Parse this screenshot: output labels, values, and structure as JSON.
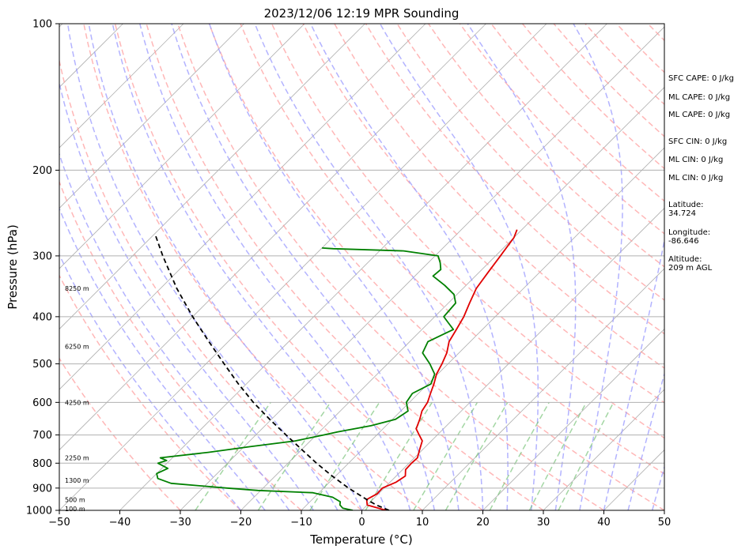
{
  "chart_data": {
    "type": "line",
    "subtype": "skew-t log-p sounding",
    "title": "2023/12/06 12:19 MPR Sounding",
    "xlabel": "Temperature (°C)",
    "ylabel": "Pressure (hPa)",
    "xlim": [
      -50,
      50
    ],
    "ylim": [
      1000,
      100
    ],
    "y_scale": "log",
    "x_ticks": [
      "−50",
      "−40",
      "−30",
      "−20",
      "−10",
      "0",
      "10",
      "20",
      "30",
      "40",
      "50"
    ],
    "y_ticks": [
      "100",
      "200",
      "300",
      "400",
      "500",
      "600",
      "700",
      "800",
      "900",
      "1000"
    ],
    "grid": "horizontal at y ticks",
    "series": [
      {
        "name": "temperature",
        "color": "#e00000",
        "points": [
          [
            1000,
            4.0
          ],
          [
            975,
            0.0
          ],
          [
            950,
            -1.0
          ],
          [
            925,
            -0.2
          ],
          [
            900,
            -0.3
          ],
          [
            875,
            1.0
          ],
          [
            850,
            1.5
          ],
          [
            825,
            0.5
          ],
          [
            800,
            0.4
          ],
          [
            780,
            0.5
          ],
          [
            750,
            -0.5
          ],
          [
            720,
            -1.5
          ],
          [
            700,
            -3.0
          ],
          [
            680,
            -4.5
          ],
          [
            650,
            -5.5
          ],
          [
            625,
            -6.5
          ],
          [
            600,
            -7.0
          ],
          [
            575,
            -8.0
          ],
          [
            550,
            -9.0
          ],
          [
            525,
            -10.2
          ],
          [
            500,
            -11.0
          ],
          [
            475,
            -12.0
          ],
          [
            450,
            -13.5
          ],
          [
            425,
            -14.3
          ],
          [
            400,
            -15.2
          ],
          [
            375,
            -16.5
          ],
          [
            350,
            -17.8
          ],
          [
            325,
            -18.5
          ],
          [
            300,
            -19.2
          ],
          [
            275,
            -20.0
          ],
          [
            265,
            -20.8
          ]
        ]
      },
      {
        "name": "dewpoint",
        "color": "#008000",
        "points": [
          [
            1000,
            -1.5
          ],
          [
            990,
            -3.5
          ],
          [
            975,
            -4.5
          ],
          [
            960,
            -5.0
          ],
          [
            940,
            -7.0
          ],
          [
            920,
            -11.0
          ],
          [
            910,
            -20.5
          ],
          [
            900,
            -26.0
          ],
          [
            880,
            -36.0
          ],
          [
            860,
            -39.0
          ],
          [
            840,
            -40.0
          ],
          [
            820,
            -39.0
          ],
          [
            800,
            -41.5
          ],
          [
            790,
            -40.5
          ],
          [
            780,
            -42.0
          ],
          [
            760,
            -35.0
          ],
          [
            740,
            -29.0
          ],
          [
            720,
            -22.5
          ],
          [
            700,
            -18.8
          ],
          [
            690,
            -17.0
          ],
          [
            670,
            -12.5
          ],
          [
            650,
            -9.5
          ],
          [
            625,
            -8.8
          ],
          [
            600,
            -10.5
          ],
          [
            575,
            -11.0
          ],
          [
            550,
            -9.5
          ],
          [
            525,
            -10.5
          ],
          [
            500,
            -13.0
          ],
          [
            475,
            -16.0
          ],
          [
            450,
            -17.0
          ],
          [
            425,
            -14.8
          ],
          [
            410,
            -17.0
          ],
          [
            400,
            -18.5
          ],
          [
            375,
            -18.8
          ],
          [
            360,
            -20.5
          ],
          [
            345,
            -23.5
          ],
          [
            330,
            -27.0
          ],
          [
            320,
            -26.8
          ],
          [
            310,
            -28.0
          ],
          [
            300,
            -29.5
          ],
          [
            293,
            -36.0
          ],
          [
            290,
            -48.0
          ],
          [
            289,
            -50.0
          ]
        ]
      },
      {
        "name": "parcel",
        "color": "#000000",
        "style": "dashed",
        "points": [
          [
            1000,
            4.5
          ],
          [
            975,
            1.5
          ],
          [
            950,
            -1.0
          ],
          [
            925,
            -3.4
          ],
          [
            900,
            -5.9
          ],
          [
            850,
            -10.6
          ],
          [
            800,
            -15.3
          ],
          [
            750,
            -20.0
          ],
          [
            700,
            -25.0
          ],
          [
            650,
            -30.3
          ],
          [
            600,
            -35.8
          ],
          [
            550,
            -41.3
          ],
          [
            500,
            -47.0
          ],
          [
            450,
            -53.2
          ],
          [
            400,
            -60.0
          ],
          [
            350,
            -67.3
          ],
          [
            300,
            -75.0
          ],
          [
            270,
            -80.0
          ]
        ]
      }
    ],
    "background_lines": {
      "isotherms": {
        "color": "#b0b0b0",
        "style": "solid"
      },
      "dry_adiabats": {
        "color": "#ff9999",
        "style": "dashed"
      },
      "moist_adiabats": {
        "color": "#9999ff",
        "style": "dashed"
      },
      "mixing_ratio": {
        "color": "#66bb66",
        "style": "dashed"
      }
    },
    "height_labels": [
      {
        "text": "100 m",
        "p": 993
      },
      {
        "text": "500 m",
        "p": 950
      },
      {
        "text": "1300 m",
        "p": 868
      },
      {
        "text": "2250 m",
        "p": 780
      },
      {
        "text": "4250 m",
        "p": 600
      },
      {
        "text": "6250 m",
        "p": 460
      },
      {
        "text": "8250 m",
        "p": 350
      }
    ],
    "stats": [
      "SFC CAPE: 0 J/kg",
      "ML CAPE: 0 J/kg",
      "ML CAPE: 0 J/kg",
      "SFC CIN: 0 J/kg",
      "ML CIN: 0 J/kg",
      "ML CIN: 0 J/kg"
    ],
    "location": [
      {
        "label": "Latitude:",
        "value": "34.724"
      },
      {
        "label": "Longitude:",
        "value": "-86.646"
      },
      {
        "label": "Altitude:",
        "value": "209 m AGL"
      }
    ]
  }
}
